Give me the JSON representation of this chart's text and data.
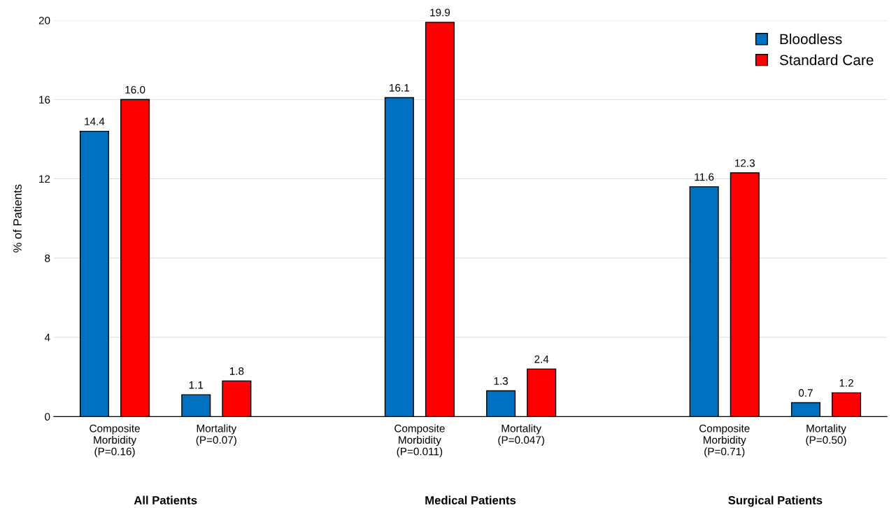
{
  "chart_data": {
    "type": "bar",
    "ylabel": "% of Patients",
    "categories": [
      "Composite\nMorbidity\n(P=0.16)",
      "Mortality\n(P=0.07)",
      null,
      "Composite\nMorbidity\n(P=0.011)",
      "Mortality\n(P=0.047)",
      null,
      "Composite\nMorbidity\n(P=0.71)",
      "Mortality\n(P=0.50)"
    ],
    "series": [
      {
        "name": "Bloodless",
        "color": "#0070c0",
        "values": [
          14.4,
          1.1,
          null,
          16.1,
          1.3,
          null,
          11.6,
          0.7
        ],
        "value_labels": [
          "14.4",
          "1.1",
          null,
          "16.1",
          "1.3",
          null,
          "11.6",
          "0.7"
        ]
      },
      {
        "name": "Standard Care",
        "color": "#ff0000",
        "values": [
          16.0,
          1.8,
          null,
          19.9,
          2.4,
          null,
          12.3,
          1.2
        ],
        "value_labels": [
          "16.0",
          "1.8",
          null,
          "19.9",
          "2.4",
          null,
          "12.3",
          "1.2"
        ]
      }
    ],
    "annotations": [
      "All Patients",
      "Medical Patients",
      "Surgical Patients"
    ],
    "ylim": [
      0,
      20
    ],
    "yticks": [
      0,
      4,
      8,
      12,
      16,
      20
    ],
    "grid": "y",
    "legend": "top right"
  }
}
